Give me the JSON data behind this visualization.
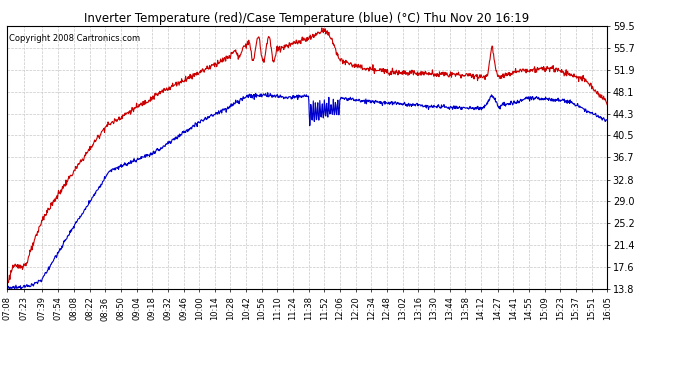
{
  "title": "Inverter Temperature (red)/Case Temperature (blue) (°C) Thu Nov 20 16:19",
  "copyright": "Copyright 2008 Cartronics.com",
  "background_color": "#ffffff",
  "plot_bg_color": "#ffffff",
  "grid_color": "#c8c8c8",
  "red_color": "#cc0000",
  "blue_color": "#0000cc",
  "y_ticks": [
    13.8,
    17.6,
    21.4,
    25.2,
    29.0,
    32.8,
    36.7,
    40.5,
    44.3,
    48.1,
    51.9,
    55.7,
    59.5
  ],
  "x_labels": [
    "07:08",
    "07:23",
    "07:39",
    "07:54",
    "08:08",
    "08:22",
    "08:36",
    "08:50",
    "09:04",
    "09:18",
    "09:32",
    "09:46",
    "10:00",
    "10:14",
    "10:28",
    "10:42",
    "10:56",
    "11:10",
    "11:24",
    "11:38",
    "11:52",
    "12:06",
    "12:20",
    "12:34",
    "12:48",
    "13:02",
    "13:16",
    "13:30",
    "13:44",
    "13:58",
    "14:12",
    "14:27",
    "14:41",
    "14:55",
    "15:09",
    "15:23",
    "15:37",
    "15:51",
    "16:05"
  ],
  "ylim": [
    13.8,
    59.5
  ],
  "line_width": 0.8
}
